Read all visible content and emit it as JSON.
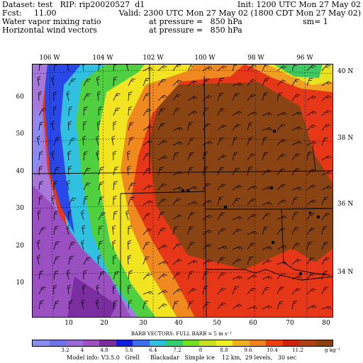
{
  "header": {
    "dataset": "Dataset: test   RIP: rip20020527  d1",
    "init": "Init: 1200 UTC Mon 27 May 02",
    "fcst": "Fcst:     11.00",
    "valid": "Valid: 2300 UTC Mon 27 May 02 (1800 CDT Mon 27 May 02)",
    "field1": "Water vapor mixing ratio",
    "field1_level": "at pressure =   850 hPa",
    "field1_sm": "sm= 1",
    "field2": "Horizontal wind vectors",
    "field2_level": "at pressure =   850 hPa"
  },
  "map": {
    "lon_labels": [
      "106 W",
      "104 W",
      "102 W",
      "100 W",
      "98 W",
      "96 W"
    ],
    "lat_labels": [
      "40 N",
      "38 N",
      "36 N",
      "34 N"
    ],
    "x_ticks": [
      "10",
      "20",
      "30",
      "40",
      "50",
      "60",
      "70",
      "80"
    ],
    "y_ticks": [
      "10",
      "20",
      "30",
      "40",
      "50",
      "60"
    ],
    "stations": [
      "station-1",
      "station-2",
      "station-3",
      "station-4",
      "station-5",
      "station-6",
      "station-7",
      "station-8",
      "station-9"
    ]
  },
  "legend": {
    "barb_title": "BARB VECTORS:  FULL BARB = 5 m s⁻¹",
    "labels": [
      "3.2",
      "4",
      "4.8",
      "5.6",
      "6.4",
      "7.2",
      "8",
      "8.8",
      "9.6",
      "10.4",
      "11.2"
    ],
    "unit": "g kg⁻¹",
    "colors": [
      "#8a8cf0",
      "#7070e8",
      "#9a6ad8",
      "#a050c0",
      "#7a2ea0",
      "#1020e0",
      "#3a70f0",
      "#30c0e0",
      "#30d070",
      "#70e020",
      "#c8e020",
      "#f0f020",
      "#f0b020",
      "#f08020",
      "#f04010",
      "#d02010",
      "#b04010",
      "#8a4010"
    ]
  },
  "footer": "Model info: V3.5.0   Grell      Blackadar   Simple ice    12 km,  29 levels,   30 sec"
}
